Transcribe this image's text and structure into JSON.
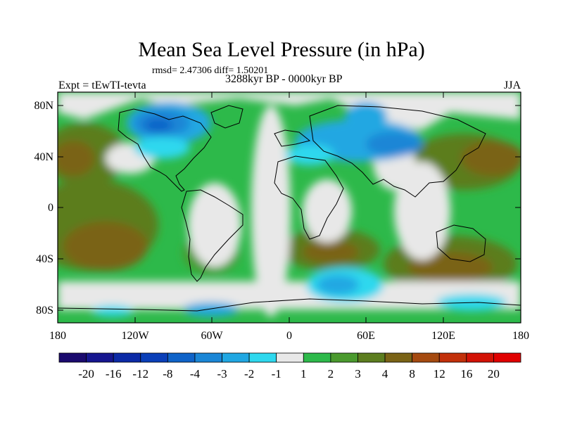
{
  "title": "Mean Sea Level Pressure (in hPa)",
  "stats": "rmsd= 2.47306 diff= 1.50201",
  "period": "3288kyr BP - 0000kyr BP",
  "experiment": "Expt = tEwTI-tevta",
  "season": "JJA",
  "axes": {
    "y_ticks": [
      "80N",
      "40N",
      "0",
      "40S",
      "80S"
    ],
    "x_ticks": [
      "180",
      "120W",
      "60W",
      "0",
      "60E",
      "120E",
      "180"
    ]
  },
  "colorbar": {
    "labels": [
      "-20",
      "-16",
      "-12",
      "-8",
      "-4",
      "-3",
      "-2",
      "-1",
      "1",
      "2",
      "3",
      "4",
      "8",
      "12",
      "16",
      "20"
    ],
    "colors": [
      "#1a0a6e",
      "#16168f",
      "#0c2aa6",
      "#0a3fb8",
      "#0f63c8",
      "#1a86d6",
      "#20a7e2",
      "#2ed8ee",
      "#e8e8e8",
      "#2db94a",
      "#4a9a2e",
      "#5c7d1f",
      "#7a6316",
      "#a54a10",
      "#c2300a",
      "#d21205",
      "#e00000"
    ]
  },
  "colors": {
    "ocean_background": "#2db94a",
    "neutral": "#e8e8e8",
    "coastline": "#000000"
  }
}
